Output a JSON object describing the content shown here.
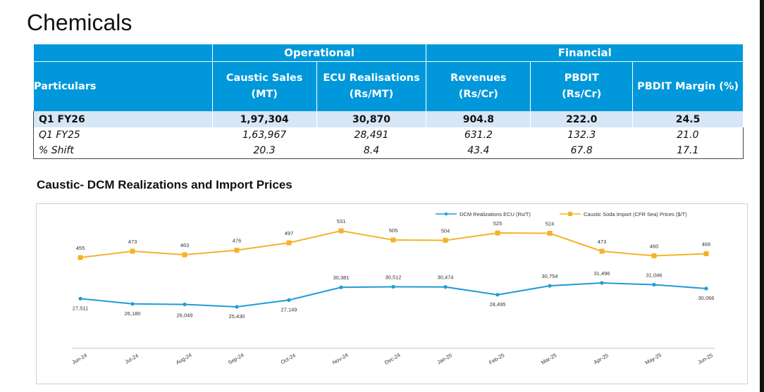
{
  "page_title": "Chemicals",
  "table": {
    "group_operational": "Operational",
    "group_financial": "Financial",
    "headers": {
      "particulars": "Particulars",
      "caustic_sales_l1": "Caustic Sales",
      "caustic_sales_l2": "(MT)",
      "ecu_l1": "ECU Realisations",
      "ecu_l2": "(Rs/MT)",
      "revenues_l1": "Revenues",
      "revenues_l2": "(Rs/Cr)",
      "pbdit_l1": "PBDIT",
      "pbdit_l2": "(Rs/Cr)",
      "pbdit_margin": "PBDIT Margin (%)"
    },
    "rows": [
      {
        "label": "Q1 FY26",
        "caustic_sales": "1,97,304",
        "ecu": "30,870",
        "revenues": "904.8",
        "pbdit": "222.0",
        "margin": "24.5"
      },
      {
        "label": "Q1 FY25",
        "caustic_sales": "1,63,967",
        "ecu": "28,491",
        "revenues": "631.2",
        "pbdit": "132.3",
        "margin": "21.0"
      },
      {
        "label": "% Shift",
        "caustic_sales": "20.3",
        "ecu": "8.4",
        "revenues": "43.4",
        "pbdit": "67.8",
        "margin": "17.1"
      }
    ]
  },
  "chart_heading": "Caustic- DCM Realizations and Import Prices",
  "chart_data": {
    "type": "line",
    "categories": [
      "Jun-24",
      "Jul-24",
      "Aug-24",
      "Sep-24",
      "Oct-24",
      "Nov-24",
      "Dec-24",
      "Jan-25",
      "Feb-25",
      "Mar-25",
      "Apr-25",
      "May-25",
      "Jun-25"
    ],
    "series": [
      {
        "name": "DCM Realizations ECU (Rs/T)",
        "color": "#1F9BD6",
        "values": [
          27511,
          26180,
          26049,
          25430,
          27149,
          30381,
          30512,
          30474,
          28495,
          30754,
          31496,
          31046,
          30066
        ],
        "labels": [
          "27,511",
          "26,180",
          "26,049",
          "25,430",
          "27,149",
          "30,381",
          "30,512",
          "30,474",
          "28,495",
          "30,754",
          "31,496",
          "31,046",
          "30,066"
        ]
      },
      {
        "name": "Caustic Soda Import (CFR Sea) Prices ($/T)",
        "color": "#F5B22A",
        "values": [
          455,
          473,
          463,
          476,
          497,
          531,
          505,
          504,
          525,
          524,
          473,
          460,
          466
        ],
        "labels": [
          "455",
          "473",
          "463",
          "476",
          "497",
          "531",
          "505",
          "504",
          "525",
          "524",
          "473",
          "460",
          "466"
        ]
      }
    ],
    "legend": "top-right",
    "grid": false,
    "marker_shape": "square"
  }
}
